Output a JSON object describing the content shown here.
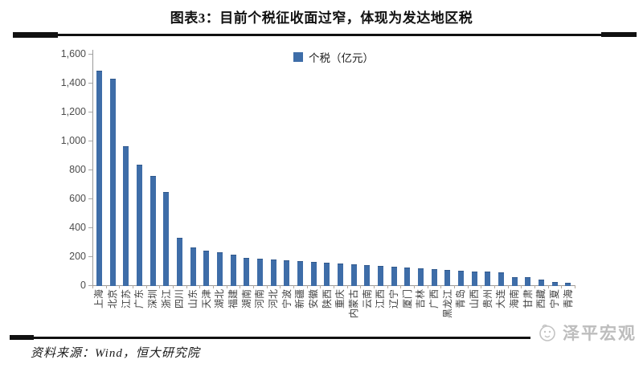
{
  "page": {
    "title": "图表3：目前个税征收面过窄，体现为发达地区税",
    "source_note": "资料来源：Wind，恒大研究院",
    "watermark": "泽平宏观"
  },
  "chart_data": {
    "type": "bar",
    "title": "图表3：目前个税征收面过窄，体现为发达地区税",
    "legend_label": "个税（亿元）",
    "legend_position": "top-center",
    "grid": false,
    "ylim": [
      0,
      1600
    ],
    "ytick_step": 200,
    "ytick_labels": [
      "0",
      "200",
      "400",
      "600",
      "800",
      "1,000",
      "1,200",
      "1,400",
      "1,600"
    ],
    "bar_color": "#3E6DA8",
    "categories": [
      "上海",
      "北京",
      "江苏",
      "广东",
      "深圳",
      "浙江",
      "四川",
      "山东",
      "天津",
      "湖北",
      "福建",
      "湖南",
      "河南",
      "河北",
      "宁波",
      "新疆",
      "安徽",
      "陕西",
      "重庆",
      "内蒙古",
      "云南",
      "江西",
      "辽宁",
      "厦门",
      "吉林",
      "广西",
      "黑龙江",
      "青岛",
      "山西",
      "贵州",
      "大连",
      "海南",
      "甘肃",
      "西藏",
      "宁夏",
      "青海"
    ],
    "values": [
      1483,
      1429,
      960,
      831,
      756,
      642,
      327,
      262,
      240,
      228,
      210,
      190,
      186,
      180,
      174,
      166,
      161,
      157,
      152,
      147,
      140,
      133,
      127,
      121,
      114,
      109,
      104,
      100,
      96,
      93,
      87,
      58,
      55,
      38,
      25,
      15
    ]
  },
  "colors": {
    "bar": "#3E6DA8",
    "rule": "#111111",
    "watermark_gray": "#bdbdbd"
  }
}
